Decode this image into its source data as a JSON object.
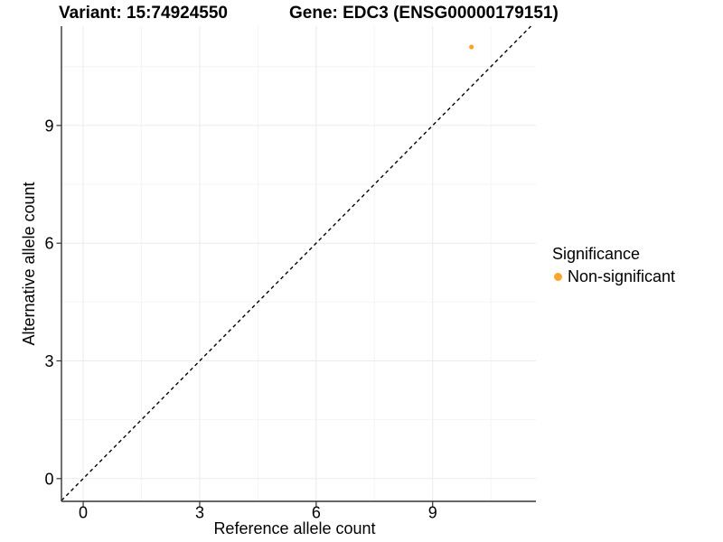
{
  "header": {
    "variant_title": "Variant: 15:74924550",
    "gene_title": "Gene: EDC3 (ENSG00000179151)"
  },
  "chart_data": {
    "type": "scatter",
    "xlabel": "Reference allele count",
    "ylabel": "Alternative allele count",
    "xlim": [
      -0.56,
      11.66
    ],
    "ylim": [
      -0.58,
      11.53
    ],
    "x_ticks": [
      0,
      3,
      6,
      9
    ],
    "y_ticks": [
      0,
      3,
      6,
      9
    ],
    "x_minor_ticks": [
      1.5,
      4.5,
      7.5,
      10.5
    ],
    "y_minor_ticks": [
      1.5,
      4.5,
      7.5,
      10.5
    ],
    "grid": {
      "background": "#FFFFFF",
      "major_color": "#EBEBEB",
      "minor_color": "#F4F4F4",
      "axis_line_color": "#333333"
    },
    "identity_line": {
      "equation": "y = x",
      "style": "dashed",
      "color": "#000000"
    },
    "series": [
      {
        "name": "Non-significant",
        "color": "#FAA52D",
        "points": [
          {
            "x": 10,
            "y": 11
          }
        ]
      }
    ],
    "legend": {
      "title": "Significance",
      "position": "right",
      "items": [
        {
          "label": "Non-significant",
          "color": "#FAA52D"
        }
      ]
    }
  }
}
